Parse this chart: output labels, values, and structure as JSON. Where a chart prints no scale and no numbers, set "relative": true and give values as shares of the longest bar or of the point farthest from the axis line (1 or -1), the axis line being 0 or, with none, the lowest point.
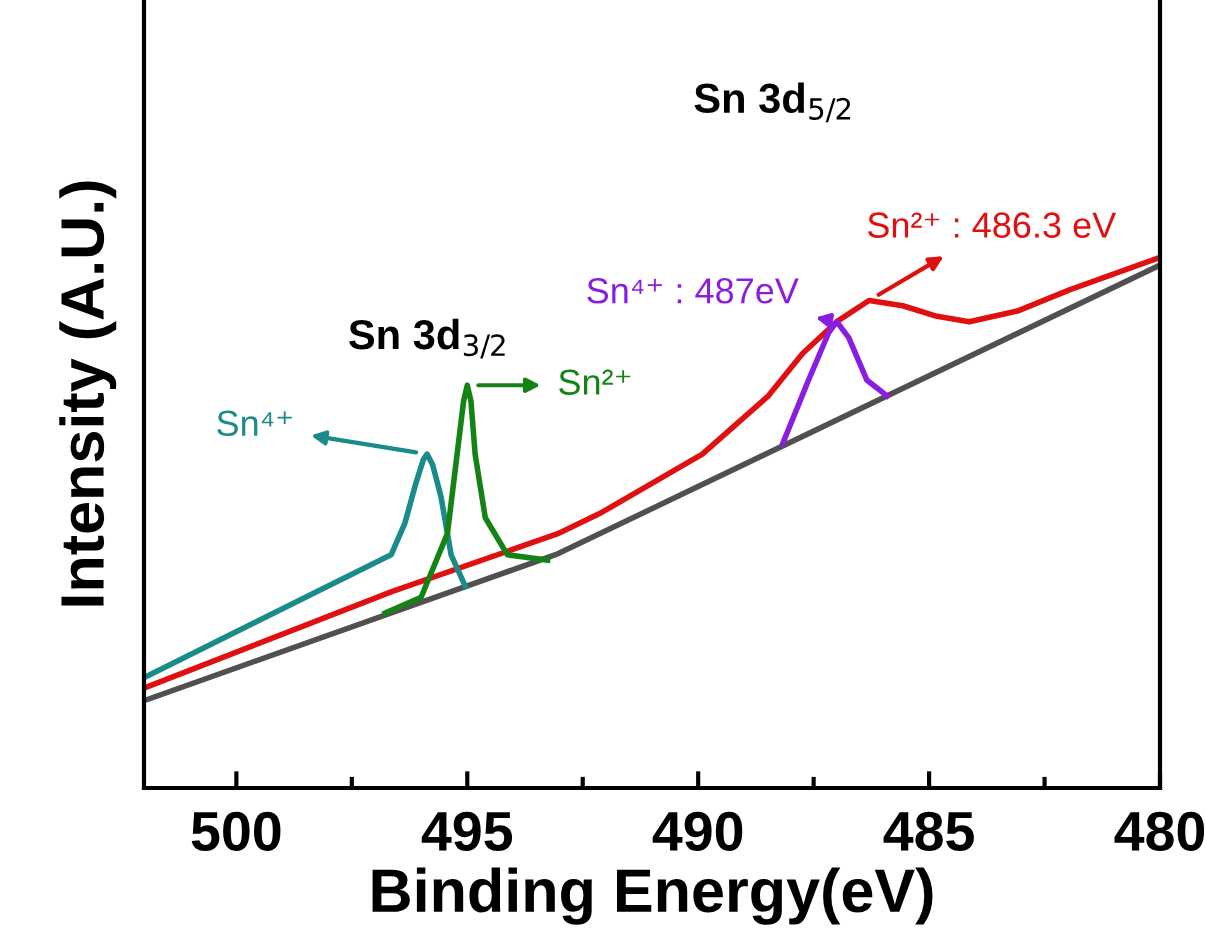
{
  "chart_data": {
    "type": "line",
    "relative": true,
    "xlabel": "Binding Energy(eV)",
    "ylabel": "Intensity (A.U.)",
    "xlim": [
      502,
      480
    ],
    "xticks": [
      500,
      495,
      490,
      485,
      480
    ],
    "grid": false,
    "legend": false,
    "marker": "none",
    "line_style": "solid",
    "tick_labels": "x",
    "series": [
      {
        "color": "#505050",
        "x": [
          501.96,
          493.04,
          480.04
        ],
        "values": [
          0.166,
          0.442,
          0.985
        ]
      },
      {
        "color": "#e01010",
        "x": [
          501.96,
          496.65,
          493.04,
          492.09,
          489.91,
          488.48,
          487.74,
          487.0,
          486.3,
          485.57,
          484.83,
          484.13,
          483.09,
          481.96,
          480.04
        ],
        "values": [
          0.19,
          0.37,
          0.48,
          0.52,
          0.63,
          0.74,
          0.82,
          0.88,
          0.92,
          0.91,
          0.89,
          0.88,
          0.9,
          0.94,
          1.0
        ]
      },
      {
        "color": "#1a8a8a",
        "x": [
          501.96,
          496.65,
          496.35,
          496.13,
          495.95,
          495.87,
          495.75,
          495.57,
          495.35,
          495.04
        ],
        "values": [
          0.21,
          0.44,
          0.5,
          0.57,
          0.62,
          0.63,
          0.61,
          0.55,
          0.44,
          0.38
        ]
      },
      {
        "color": "#148214",
        "x": [
          496.78,
          496.0,
          495.43,
          495.22,
          495.08,
          495.0,
          494.92,
          494.83,
          494.61,
          494.13,
          493.26
        ],
        "values": [
          0.33,
          0.36,
          0.48,
          0.63,
          0.73,
          0.76,
          0.73,
          0.63,
          0.51,
          0.44,
          0.43
        ]
      },
      {
        "color": "#8a1ee0",
        "x": [
          488.17,
          487.61,
          487.17,
          487.0,
          486.74,
          486.35,
          485.91
        ],
        "values": [
          0.65,
          0.77,
          0.86,
          0.88,
          0.85,
          0.77,
          0.74
        ]
      }
    ],
    "annotations": [
      "Sn 3d$_{3/2}$",
      "Sn 3d$_{5/2}$",
      {
        "text": "Sn⁴⁺",
        "x": 495.87,
        "y": 0.63
      },
      {
        "text": "Sn²⁺",
        "x": 495.0,
        "y": 0.76
      },
      {
        "text": "Sn⁴⁺ : 487eV",
        "x": 487.0,
        "y": 0.88
      },
      {
        "text": "Sn²⁺ : 486.3 eV",
        "x": 486.3,
        "y": 0.92
      }
    ]
  }
}
